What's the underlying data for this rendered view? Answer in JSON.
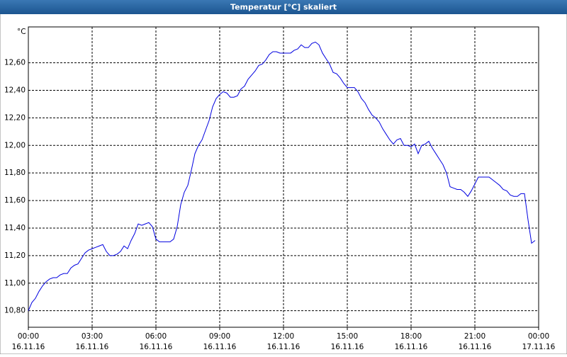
{
  "chart_data": {
    "type": "line",
    "title": "Temperatur [°C] skaliert",
    "y_unit": "°C",
    "x": [
      0,
      10,
      20,
      30,
      40,
      50,
      60,
      70,
      80,
      90,
      100,
      110,
      120,
      130,
      140,
      150,
      160,
      170,
      180,
      190,
      200,
      210,
      220,
      230,
      240,
      250,
      260,
      270,
      280,
      290,
      300,
      310,
      320,
      330,
      340,
      350,
      360,
      370,
      380,
      390,
      400,
      410,
      420,
      430,
      440,
      450,
      460,
      470,
      480,
      490,
      500,
      510,
      520,
      530,
      540,
      550,
      560,
      570,
      580,
      590,
      600,
      610,
      620,
      630,
      640,
      650,
      660,
      670,
      680,
      690,
      700,
      710,
      720,
      730,
      740,
      750,
      760,
      770,
      780,
      790,
      800,
      810,
      820,
      830,
      840,
      850,
      860,
      870,
      880,
      890,
      900,
      910,
      920,
      930,
      940,
      950,
      960,
      970,
      980,
      990,
      1000,
      1010,
      1020,
      1030,
      1040,
      1050,
      1060,
      1070,
      1080,
      1090,
      1100,
      1110,
      1120,
      1130,
      1140,
      1150,
      1160,
      1170,
      1180,
      1190,
      1200,
      1210,
      1220,
      1230,
      1240,
      1250,
      1260,
      1270,
      1280,
      1290,
      1300,
      1310,
      1320,
      1330,
      1340,
      1350,
      1360,
      1370,
      1380,
      1390,
      1400,
      1410,
      1420,
      1430
    ],
    "series": [
      {
        "color": "#0000e0",
        "values": [
          10.8,
          10.86,
          10.89,
          10.94,
          10.98,
          11.01,
          11.03,
          11.04,
          11.04,
          11.06,
          11.07,
          11.07,
          11.11,
          11.13,
          11.14,
          11.18,
          11.22,
          11.24,
          11.25,
          11.26,
          11.27,
          11.28,
          11.23,
          11.2,
          11.2,
          11.21,
          11.23,
          11.27,
          11.25,
          11.31,
          11.36,
          11.43,
          11.42,
          11.43,
          11.44,
          11.41,
          11.32,
          11.3,
          11.3,
          11.3,
          11.3,
          11.32,
          11.41,
          11.57,
          11.66,
          11.71,
          11.82,
          11.94,
          12.0,
          12.04,
          12.11,
          12.18,
          12.28,
          12.34,
          12.37,
          12.39,
          12.38,
          12.35,
          12.35,
          12.36,
          12.41,
          12.43,
          12.48,
          12.51,
          12.54,
          12.58,
          12.59,
          12.62,
          12.66,
          12.68,
          12.68,
          12.67,
          12.67,
          12.67,
          12.67,
          12.69,
          12.7,
          12.73,
          12.71,
          12.71,
          12.74,
          12.75,
          12.73,
          12.67,
          12.63,
          12.59,
          12.53,
          12.52,
          12.49,
          12.45,
          12.42,
          12.42,
          12.42,
          12.39,
          12.34,
          12.31,
          12.26,
          12.22,
          12.2,
          12.17,
          12.12,
          12.08,
          12.04,
          12.01,
          12.04,
          12.05,
          12.0,
          12.0,
          11.99,
          12.01,
          11.94,
          12.0,
          12.01,
          12.03,
          11.98,
          11.94,
          11.9,
          11.86,
          11.8,
          11.7,
          11.69,
          11.68,
          11.68,
          11.66,
          11.63,
          11.67,
          11.72,
          11.77,
          11.77,
          11.77,
          11.77,
          11.75,
          11.73,
          11.71,
          11.68,
          11.67,
          11.64,
          11.63,
          11.63,
          11.65,
          11.65,
          11.46,
          11.29,
          11.31
        ]
      }
    ],
    "xlim": [
      0,
      1440
    ],
    "xticks": [
      {
        "value": 0,
        "label": "00:00"
      },
      {
        "value": 180,
        "label": "03:00"
      },
      {
        "value": 360,
        "label": "06:00"
      },
      {
        "value": 540,
        "label": "09:00"
      },
      {
        "value": 720,
        "label": "12:00"
      },
      {
        "value": 900,
        "label": "15:00"
      },
      {
        "value": 1080,
        "label": "18:00"
      },
      {
        "value": 1260,
        "label": "21:00"
      },
      {
        "value": 1440,
        "label": "00:00"
      }
    ],
    "xtick_dates": [
      "16.11.16",
      "16.11.16",
      "16.11.16",
      "16.11.16",
      "16.11.16",
      "16.11.16",
      "16.11.16",
      "16.11.16",
      "17.11.16"
    ],
    "ylim": [
      10.68,
      12.86
    ],
    "yticks": [
      {
        "value": 10.8,
        "label": "10,80"
      },
      {
        "value": 11.0,
        "label": "11,00"
      },
      {
        "value": 11.2,
        "label": "11,20"
      },
      {
        "value": 11.4,
        "label": "11,40"
      },
      {
        "value": 11.6,
        "label": "11,60"
      },
      {
        "value": 11.8,
        "label": "11,80"
      },
      {
        "value": 12.0,
        "label": "12,00"
      },
      {
        "value": 12.2,
        "label": "12,20"
      },
      {
        "value": 12.4,
        "label": "12,40"
      },
      {
        "value": 12.6,
        "label": "12,60"
      }
    ],
    "grid": true
  }
}
